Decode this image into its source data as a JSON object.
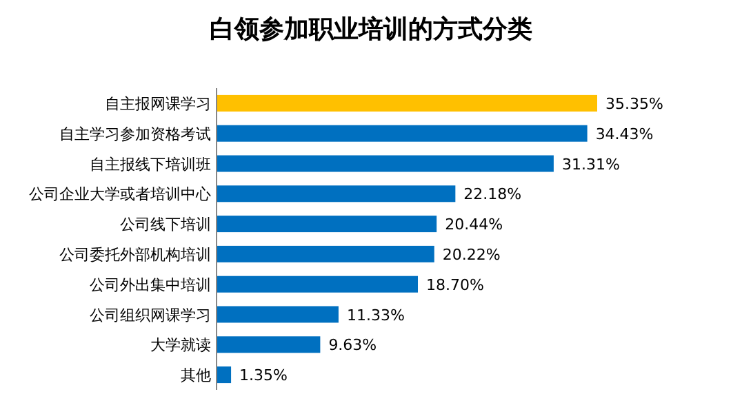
{
  "chart_data": {
    "type": "bar",
    "orientation": "horizontal",
    "title": "白领参加职业培训的方式分类",
    "categories": [
      "自主报网课学习",
      "自主学习参加资格考试",
      "自主报线下培训班",
      "公司企业大学或者培训中心",
      "公司线下培训",
      "公司委托外部机构培训",
      "公司外出集中培训",
      "公司组织网课学习",
      "大学就读",
      "其他"
    ],
    "values": [
      35.35,
      34.43,
      31.31,
      22.18,
      20.44,
      20.22,
      18.7,
      11.33,
      9.63,
      1.35
    ],
    "value_labels": [
      "35.35%",
      "34.43%",
      "31.31%",
      "22.18%",
      "20.44%",
      "20.22%",
      "18.70%",
      "11.33%",
      "9.63%",
      "1.35%"
    ],
    "colors": [
      "#ffc000",
      "#0070c0",
      "#0070c0",
      "#0070c0",
      "#0070c0",
      "#0070c0",
      "#0070c0",
      "#0070c0",
      "#0070c0",
      "#0070c0"
    ]
  }
}
